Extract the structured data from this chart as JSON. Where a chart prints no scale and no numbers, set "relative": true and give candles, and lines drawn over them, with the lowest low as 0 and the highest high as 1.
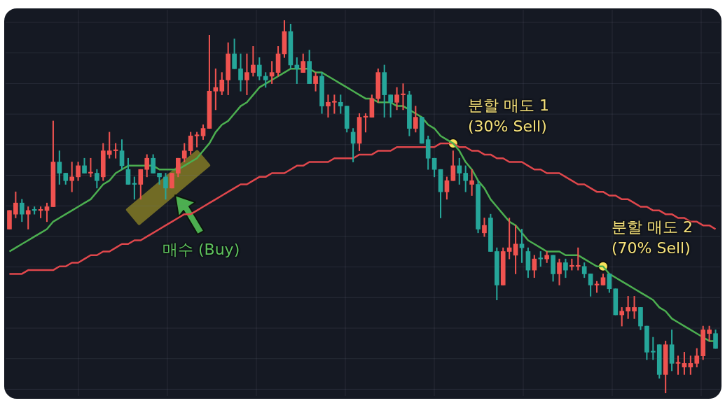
{
  "chart_data": {
    "type": "candlestick",
    "relative": true,
    "grid": true,
    "tick_labels": false,
    "categories": [
      null,
      null,
      null,
      null,
      null,
      null,
      null,
      null,
      null,
      null,
      null,
      null,
      null,
      null,
      null,
      null,
      null,
      null,
      null,
      null,
      null,
      null,
      null,
      null,
      null,
      null,
      null,
      null,
      null,
      null,
      null,
      null,
      null,
      null,
      null,
      null,
      null,
      null,
      null,
      null,
      null,
      null,
      null,
      null,
      null,
      null,
      null,
      null,
      null,
      null,
      null,
      null,
      null,
      null,
      null,
      null,
      null,
      null,
      null,
      null,
      null,
      null,
      null,
      null,
      null,
      null,
      null,
      null,
      null,
      null,
      null,
      null,
      null,
      null,
      null,
      null,
      null,
      null,
      null,
      null,
      null,
      null,
      null,
      null,
      null,
      null,
      null,
      null,
      null,
      null,
      null,
      null,
      null,
      null,
      null,
      null,
      null,
      null,
      null,
      null,
      null,
      null,
      null,
      null,
      null,
      null,
      null,
      null,
      null,
      null,
      null,
      null,
      null,
      null
    ],
    "ohlc": [
      [
        0.44,
        0.49,
        0.44,
        0.49
      ],
      [
        0.48,
        0.54,
        0.47,
        0.51
      ],
      [
        0.51,
        0.52,
        0.46,
        0.48
      ],
      [
        0.48,
        0.5,
        0.44,
        0.49
      ],
      [
        0.49,
        0.5,
        0.48,
        0.49
      ],
      [
        0.49,
        0.5,
        0.47,
        0.49
      ],
      [
        0.49,
        0.51,
        0.46,
        0.5
      ],
      [
        0.5,
        0.73,
        0.5,
        0.62
      ],
      [
        0.62,
        0.65,
        0.56,
        0.59
      ],
      [
        0.59,
        0.59,
        0.56,
        0.57
      ],
      [
        0.57,
        0.62,
        0.54,
        0.58
      ],
      [
        0.58,
        0.62,
        0.57,
        0.61
      ],
      [
        0.61,
        0.63,
        0.59,
        0.59
      ],
      [
        0.59,
        0.63,
        0.58,
        0.59
      ],
      [
        0.59,
        0.6,
        0.55,
        0.57
      ],
      [
        0.58,
        0.67,
        0.57,
        0.65
      ],
      [
        0.64,
        0.7,
        0.63,
        0.65
      ],
      [
        0.65,
        0.67,
        0.63,
        0.65
      ],
      [
        0.65,
        0.68,
        0.6,
        0.61
      ],
      [
        0.6,
        0.63,
        0.56,
        0.56
      ],
      [
        0.56,
        0.58,
        0.52,
        0.56
      ],
      [
        0.56,
        0.6,
        0.52,
        0.6
      ],
      [
        0.6,
        0.64,
        0.58,
        0.63
      ],
      [
        0.63,
        0.64,
        0.59,
        0.59
      ],
      [
        0.59,
        0.59,
        0.56,
        0.58
      ],
      [
        0.58,
        0.59,
        0.52,
        0.55
      ],
      [
        0.55,
        0.59,
        0.55,
        0.59
      ],
      [
        0.59,
        0.63,
        0.58,
        0.63
      ],
      [
        0.63,
        0.67,
        0.62,
        0.65
      ],
      [
        0.65,
        0.7,
        0.64,
        0.69
      ],
      [
        0.69,
        0.7,
        0.66,
        0.69
      ],
      [
        0.69,
        0.72,
        0.68,
        0.71
      ],
      [
        0.71,
        0.96,
        0.71,
        0.81
      ],
      [
        0.81,
        0.87,
        0.76,
        0.82
      ],
      [
        0.81,
        0.86,
        0.8,
        0.84
      ],
      [
        0.84,
        0.94,
        0.8,
        0.91
      ],
      [
        0.91,
        0.95,
        0.87,
        0.87
      ],
      [
        0.87,
        0.91,
        0.81,
        0.84
      ],
      [
        0.84,
        0.91,
        0.8,
        0.86
      ],
      [
        0.86,
        0.93,
        0.85,
        0.88
      ],
      [
        0.88,
        0.9,
        0.84,
        0.85
      ],
      [
        0.85,
        0.86,
        0.82,
        0.84
      ],
      [
        0.85,
        0.89,
        0.83,
        0.86
      ],
      [
        0.86,
        0.93,
        0.85,
        0.91
      ],
      [
        0.91,
        1,
        0.9,
        0.97
      ],
      [
        0.97,
        0.99,
        0.87,
        0.88
      ],
      [
        0.88,
        0.9,
        0.83,
        0.87
      ],
      [
        0.86,
        0.91,
        0.86,
        0.89
      ],
      [
        0.89,
        0.92,
        0.83,
        0.83
      ],
      [
        0.83,
        0.86,
        0.81,
        0.85
      ],
      [
        0.85,
        0.86,
        0.75,
        0.77
      ],
      [
        0.77,
        0.8,
        0.74,
        0.78
      ],
      [
        0.78,
        0.8,
        0.75,
        0.78
      ],
      [
        0.78,
        0.8,
        0.75,
        0.77
      ],
      [
        0.77,
        0.77,
        0.7,
        0.71
      ],
      [
        0.7,
        0.71,
        0.62,
        0.67
      ],
      [
        0.67,
        0.75,
        0.65,
        0.74
      ],
      [
        0.74,
        0.75,
        0.7,
        0.74
      ],
      [
        0.74,
        0.8,
        0.74,
        0.79
      ],
      [
        0.79,
        0.87,
        0.78,
        0.86
      ],
      [
        0.86,
        0.88,
        0.74,
        0.8
      ],
      [
        0.8,
        0.8,
        0.74,
        0.78
      ],
      [
        0.78,
        0.82,
        0.76,
        0.8
      ],
      [
        0.8,
        0.83,
        0.76,
        0.8
      ],
      [
        0.8,
        0.81,
        0.69,
        0.71
      ],
      [
        0.71,
        0.77,
        0.7,
        0.74
      ],
      [
        0.74,
        0.74,
        0.67,
        0.67
      ],
      [
        0.68,
        0.69,
        0.6,
        0.63
      ],
      [
        0.63,
        0.63,
        0.58,
        0.6
      ],
      [
        0.6,
        0.6,
        0.47,
        0.54
      ],
      [
        0.54,
        0.58,
        0.52,
        0.57
      ],
      [
        0.57,
        0.65,
        0.57,
        0.61
      ],
      [
        0.61,
        0.63,
        0.56,
        0.59
      ],
      [
        0.59,
        0.61,
        0.54,
        0.57
      ],
      [
        0.56,
        0.6,
        0.53,
        0.57
      ],
      [
        0.56,
        0.57,
        0.43,
        0.44
      ],
      [
        0.43,
        0.47,
        0.42,
        0.45
      ],
      [
        0.47,
        0.48,
        0.38,
        0.38
      ],
      [
        0.38,
        0.39,
        0.25,
        0.29
      ],
      [
        0.29,
        0.39,
        0.29,
        0.38
      ],
      [
        0.38,
        0.47,
        0.36,
        0.39
      ],
      [
        0.37,
        0.45,
        0.32,
        0.4
      ],
      [
        0.4,
        0.44,
        0.35,
        0.39
      ],
      [
        0.38,
        0.39,
        0.31,
        0.33
      ],
      [
        0.33,
        0.37,
        0.31,
        0.36
      ],
      [
        0.36,
        0.38,
        0.34,
        0.36
      ],
      [
        0.36,
        0.38,
        0.35,
        0.37
      ],
      [
        0.37,
        0.37,
        0.3,
        0.32
      ],
      [
        0.32,
        0.36,
        0.29,
        0.35
      ],
      [
        0.35,
        0.36,
        0.31,
        0.33
      ],
      [
        0.34,
        0.36,
        0.33,
        0.34
      ],
      [
        0.34,
        0.39,
        0.33,
        0.34
      ],
      [
        0.34,
        0.35,
        0.31,
        0.32
      ],
      [
        0.32,
        0.32,
        0.26,
        0.29
      ],
      [
        0.29,
        0.3,
        0.27,
        0.29
      ],
      [
        0.29,
        0.32,
        0.29,
        0.31
      ],
      [
        0.32,
        0.32,
        0.27,
        0.28
      ],
      [
        0.28,
        0.28,
        0.21,
        0.21
      ],
      [
        0.21,
        0.23,
        0.18,
        0.22
      ],
      [
        0.22,
        0.26,
        0.2,
        0.23
      ],
      [
        0.22,
        0.26,
        0.2,
        0.23
      ],
      [
        0.23,
        0.23,
        0.17,
        0.18
      ],
      [
        0.18,
        0.18,
        0.09,
        0.11
      ],
      [
        0.11,
        0.15,
        0.09,
        0.11
      ],
      [
        0.13,
        0.13,
        0.04,
        0.05
      ],
      [
        0.05,
        0.14,
        0,
        0.13
      ],
      [
        0.13,
        0.17,
        0.06,
        0.08
      ],
      [
        0.08,
        0.1,
        0.05,
        0.08
      ],
      [
        0.07,
        0.11,
        0.05,
        0.08
      ],
      [
        0.07,
        0.1,
        0.05,
        0.08
      ],
      [
        0.08,
        0.12,
        0.07,
        0.1
      ],
      [
        0.1,
        0.18,
        0.09,
        0.17
      ],
      [
        0.16,
        0.18,
        0.14,
        0.17
      ],
      [
        0.16,
        0.17,
        0.12,
        0.12
      ]
    ],
    "colors": [
      "#ef5350",
      "#ef5350",
      "#26a69a",
      "#ef5350",
      "#26a69a",
      "#ef5350",
      "#ef5350",
      "#ef5350",
      "#26a69a",
      "#26a69a",
      "#ef5350",
      "#ef5350",
      "#26a69a",
      "#ef5350",
      "#26a69a",
      "#ef5350",
      "#ef5350",
      "#ef5350",
      "#26a69a",
      "#26a69a",
      "#26a69a",
      "#ef5350",
      "#ef5350",
      "#26a69a",
      "#26a69a",
      "#26a69a",
      "#ef5350",
      "#ef5350",
      "#ef5350",
      "#ef5350",
      "#ef5350",
      "#ef5350",
      "#ef5350",
      "#ef5350",
      "#ef5350",
      "#ef5350",
      "#26a69a",
      "#26a69a",
      "#ef5350",
      "#ef5350",
      "#26a69a",
      "#26a69a",
      "#ef5350",
      "#ef5350",
      "#ef5350",
      "#26a69a",
      "#26a69a",
      "#ef5350",
      "#26a69a",
      "#ef5350",
      "#26a69a",
      "#ef5350",
      "#ef5350",
      "#26a69a",
      "#26a69a",
      "#26a69a",
      "#ef5350",
      "#ef5350",
      "#ef5350",
      "#ef5350",
      "#26a69a",
      "#26a69a",
      "#ef5350",
      "#ef5350",
      "#26a69a",
      "#ef5350",
      "#26a69a",
      "#26a69a",
      "#26a69a",
      "#26a69a",
      "#ef5350",
      "#ef5350",
      "#26a69a",
      "#26a69a",
      "#ef5350",
      "#26a69a",
      "#ef5350",
      "#26a69a",
      "#26a69a",
      "#ef5350",
      "#ef5350",
      "#ef5350",
      "#26a69a",
      "#26a69a",
      "#ef5350",
      "#26a69a",
      "#ef5350",
      "#26a69a",
      "#ef5350",
      "#26a69a",
      "#ef5350",
      "#ef5350",
      "#26a69a",
      "#26a69a",
      "#ef5350",
      "#ef5350",
      "#26a69a",
      "#26a69a",
      "#ef5350",
      "#ef5350",
      "#ef5350",
      "#26a69a",
      "#26a69a",
      "#26a69a",
      "#26a69a",
      "#ef5350",
      "#26a69a",
      "#ef5350",
      "#ef5350",
      "#ef5350",
      "#ef5350",
      "#ef5350",
      "#ef5350",
      "#26a69a"
    ],
    "series": [
      {
        "type": "line",
        "color": "#4caf50",
        "values": [
          0.38,
          0.39,
          0.4,
          0.41,
          0.42,
          0.43,
          0.44,
          0.46,
          0.47,
          0.48,
          0.49,
          0.5,
          0.51,
          0.52,
          0.54,
          0.56,
          0.57,
          0.59,
          0.6,
          0.61,
          0.61,
          0.61,
          0.61,
          0.61,
          0.6,
          0.6,
          0.6,
          0.6,
          0.61,
          0.62,
          0.63,
          0.65,
          0.67,
          0.7,
          0.72,
          0.73,
          0.75,
          0.77,
          0.78,
          0.8,
          0.82,
          0.83,
          0.84,
          0.85,
          0.86,
          0.87,
          0.87,
          0.87,
          0.87,
          0.86,
          0.86,
          0.85,
          0.84,
          0.83,
          0.82,
          0.81,
          0.8,
          0.79,
          0.79,
          0.78,
          0.78,
          0.78,
          0.77,
          0.77,
          0.76,
          0.75,
          0.74,
          0.72,
          0.71,
          0.69,
          0.68,
          0.67,
          0.65,
          0.62,
          0.6,
          0.57,
          0.55,
          0.52,
          0.5,
          0.48,
          0.46,
          0.45,
          0.43,
          0.41,
          0.4,
          0.39,
          0.38,
          0.38,
          0.38,
          0.37,
          0.37,
          0.37,
          0.36,
          0.35,
          0.34,
          0.34,
          0.32,
          0.31,
          0.3,
          0.29,
          0.28,
          0.27,
          0.26,
          0.25,
          0.23,
          0.22,
          0.2,
          0.19,
          0.18,
          0.17,
          0.16,
          0.15,
          0.14,
          0.14
        ]
      },
      {
        "type": "line",
        "color": "#e0474c",
        "values": [
          0.32,
          0.32,
          0.32,
          0.33,
          0.33,
          0.33,
          0.33,
          0.33,
          0.34,
          0.34,
          0.35,
          0.35,
          0.36,
          0.37,
          0.37,
          0.38,
          0.38,
          0.39,
          0.4,
          0.4,
          0.41,
          0.41,
          0.42,
          0.43,
          0.44,
          0.45,
          0.46,
          0.47,
          0.48,
          0.48,
          0.49,
          0.5,
          0.51,
          0.52,
          0.53,
          0.54,
          0.55,
          0.56,
          0.56,
          0.57,
          0.58,
          0.58,
          0.59,
          0.59,
          0.59,
          0.6,
          0.61,
          0.61,
          0.62,
          0.62,
          0.62,
          0.62,
          0.63,
          0.63,
          0.63,
          0.63,
          0.64,
          0.64,
          0.64,
          0.65,
          0.65,
          0.65,
          0.66,
          0.66,
          0.66,
          0.66,
          0.66,
          0.66,
          0.66,
          0.67,
          0.67,
          0.67,
          0.66,
          0.66,
          0.65,
          0.65,
          0.64,
          0.64,
          0.63,
          0.63,
          0.62,
          0.62,
          0.62,
          0.61,
          0.6,
          0.6,
          0.59,
          0.59,
          0.59,
          0.58,
          0.57,
          0.56,
          0.56,
          0.55,
          0.54,
          0.54,
          0.53,
          0.53,
          0.52,
          0.52,
          0.51,
          0.5,
          0.5,
          0.49,
          0.49,
          0.48,
          0.48,
          0.47,
          0.47,
          0.46,
          0.46,
          0.45,
          0.45,
          0.44
        ]
      },
      {
        "type": "scatter",
        "color": "#f7e35a",
        "marker": "circle",
        "values": [
          null,
          null,
          null,
          null,
          null,
          null,
          null,
          null,
          null,
          null,
          null,
          null,
          null,
          null,
          null,
          null,
          null,
          null,
          null,
          null,
          null,
          null,
          null,
          null,
          null,
          null,
          null,
          null,
          null,
          null,
          null,
          null,
          null,
          null,
          null,
          null,
          null,
          null,
          null,
          null,
          null,
          null,
          null,
          null,
          null,
          null,
          null,
          null,
          null,
          null,
          null,
          null,
          null,
          null,
          null,
          null,
          null,
          null,
          null,
          null,
          null,
          null,
          null,
          null,
          null,
          null,
          null,
          null,
          null,
          null,
          null,
          0.67,
          null,
          null,
          null,
          null,
          null,
          null,
          null,
          null,
          null,
          null,
          null,
          null,
          null,
          null,
          null,
          null,
          null,
          null,
          null,
          null,
          null,
          null,
          null,
          0.34,
          null,
          null,
          null,
          null,
          null,
          null,
          null,
          null,
          null,
          null,
          null,
          null,
          null,
          null,
          null,
          null,
          null,
          null
        ]
      }
    ],
    "annotations": [
      "매수 (Buy)",
      "분할 매도 1\n(30% Sell)",
      "분할 매도 2\n(70% Sell)"
    ]
  }
}
